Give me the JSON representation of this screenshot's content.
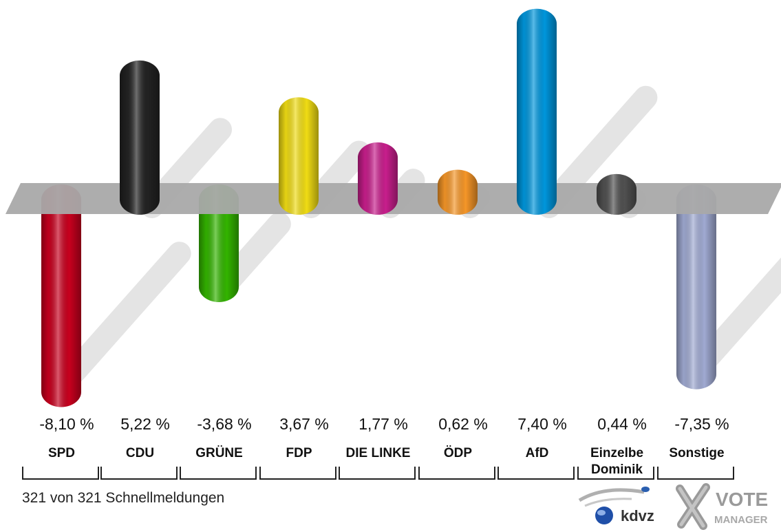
{
  "chart_data": {
    "type": "bar",
    "categories": [
      "SPD",
      "CDU",
      "GRÜNE",
      "FDP",
      "DIE LINKE",
      "ÖDP",
      "AfD",
      "Einzelbe Dominik",
      "Sonstige"
    ],
    "values": [
      -8.1,
      5.22,
      -3.68,
      3.67,
      1.77,
      0.62,
      7.4,
      0.44,
      -7.35
    ],
    "value_labels": [
      "-8,10 %",
      "5,22 %",
      "-3,68 %",
      "3,67 %",
      "1,77 %",
      "0,62 %",
      "7,40 %",
      "0,44 %",
      "-7,35 %"
    ],
    "category_labels": [
      "SPD",
      "CDU",
      "GRÜNE",
      "FDP",
      "DIE LINKE",
      "ÖDP",
      "AfD",
      "Einzelbe Dominik",
      "Sonstige"
    ],
    "colors": [
      "#c8001e",
      "#222222",
      "#33b400",
      "#f0dc14",
      "#c81e8c",
      "#f59628",
      "#0096dc",
      "#505050",
      "#a0aad2"
    ],
    "baseline": 0,
    "ylim": [
      -8.5,
      8.0
    ],
    "grid": false,
    "legend": "none"
  },
  "footer": {
    "text": "321 von 321 Schnellmeldungen"
  },
  "logos": {
    "kdvz": "kdvz",
    "vote_line1": "VOTE",
    "vote_line2": "MANAGER"
  }
}
